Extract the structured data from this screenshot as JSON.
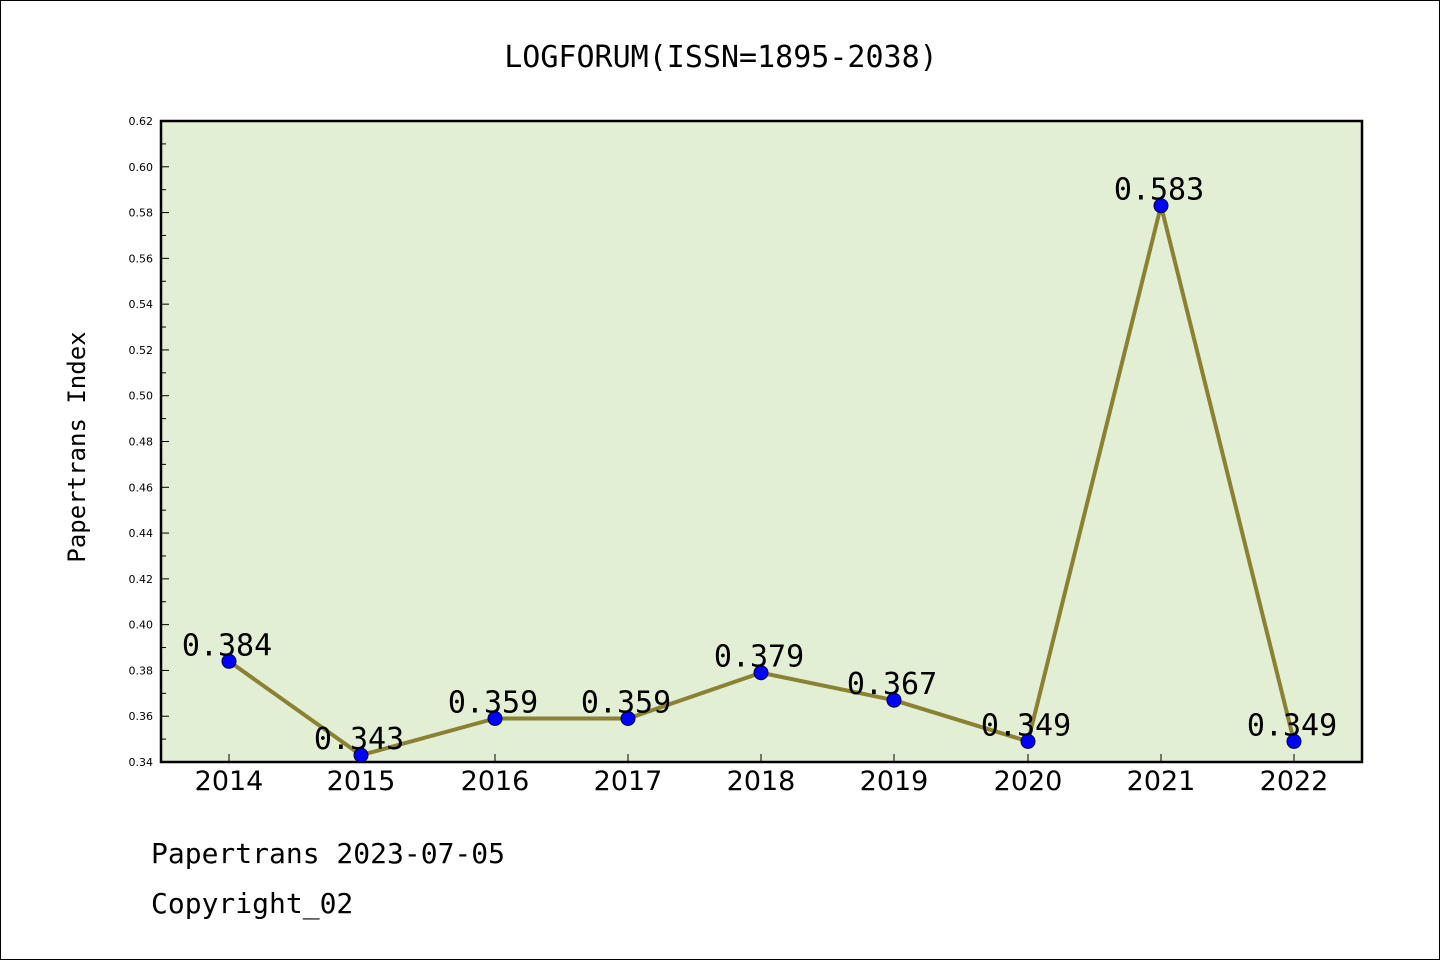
{
  "chart_data": {
    "type": "line",
    "title": "LOGFORUM(ISSN=1895-2038)",
    "xlabel": "",
    "ylabel": "Papertrans Index",
    "categories": [
      "2014",
      "2015",
      "2016",
      "2017",
      "2018",
      "2019",
      "2020",
      "2021",
      "2022"
    ],
    "series": [
      {
        "values": [
          0.384,
          0.343,
          0.359,
          0.359,
          0.379,
          0.367,
          0.349,
          0.583,
          0.349
        ],
        "labels": [
          "0.384",
          "0.343",
          "0.359",
          "0.359",
          "0.379",
          "0.367",
          "0.349",
          "0.583",
          "0.349"
        ]
      }
    ],
    "ylim": [
      0.34,
      0.62
    ],
    "yticks": [
      "0.34",
      "0.36",
      "0.38",
      "0.40",
      "0.42",
      "0.44",
      "0.46",
      "0.48",
      "0.50",
      "0.52",
      "0.54",
      "0.56",
      "0.58",
      "0.60",
      "0.62"
    ],
    "grid": false,
    "legend": "none",
    "colors": {
      "plot_background": "#e2efd4",
      "line": "#8b8133",
      "marker": "#0000ff"
    }
  },
  "footer": {
    "line1": "Papertrans 2023-07-05",
    "line2": "Copyright_02"
  }
}
